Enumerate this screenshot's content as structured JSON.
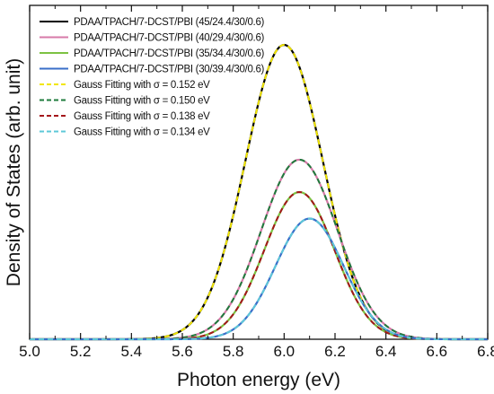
{
  "chart_data": {
    "type": "line",
    "title": "",
    "xlabel": "Photon energy (eV)",
    "ylabel": "Density of States (arb. unit)",
    "xlim": [
      5.0,
      6.8
    ],
    "ylim": [
      0,
      1.0
    ],
    "x_ticks": [
      "5.0",
      "5.2",
      "5.4",
      "5.6",
      "5.8",
      "6.0",
      "6.2",
      "6.4",
      "6.6",
      "6.8"
    ],
    "y_ticks_labeled": false,
    "grid": false,
    "legend_position": "top-left",
    "series": [
      {
        "name": "PDAA/TPACH/7-DCST/PBI (45/24.4/30/0.6)",
        "color": "#000000",
        "style": "solid",
        "center": 6.0,
        "peak": 1.0,
        "sigma": 0.152
      },
      {
        "name": "PDAA/TPACH/7-DCST/PBI (40/29.4/30/0.6)",
        "color": "#d77aa8",
        "style": "solid",
        "center": 6.06,
        "peak": 0.61,
        "sigma": 0.15
      },
      {
        "name": "PDAA/TPACH/7-DCST/PBI (35/34.4/30/0.6)",
        "color": "#7cc242",
        "style": "solid",
        "center": 6.06,
        "peak": 0.5,
        "sigma": 0.138
      },
      {
        "name": "PDAA/TPACH/7-DCST/PBI (30/39.4/30/0.6)",
        "color": "#3a6fc9",
        "style": "solid",
        "center": 6.1,
        "peak": 0.41,
        "sigma": 0.134
      },
      {
        "name": "Gauss Fitting with σ = 0.152 eV",
        "color": "#f2e600",
        "style": "dashed",
        "center": 6.0,
        "peak": 1.0,
        "sigma": 0.152
      },
      {
        "name": "Gauss Fitting with σ = 0.150 eV",
        "color": "#1e7b3c",
        "style": "dashed",
        "center": 6.06,
        "peak": 0.61,
        "sigma": 0.15
      },
      {
        "name": "Gauss Fitting with σ = 0.138 eV",
        "color": "#a4161a",
        "style": "dashed",
        "center": 6.06,
        "peak": 0.5,
        "sigma": 0.138
      },
      {
        "name": "Gauss Fitting with σ = 0.134 eV",
        "color": "#5ec8d8",
        "style": "dashed",
        "center": 6.1,
        "peak": 0.41,
        "sigma": 0.134
      }
    ]
  }
}
